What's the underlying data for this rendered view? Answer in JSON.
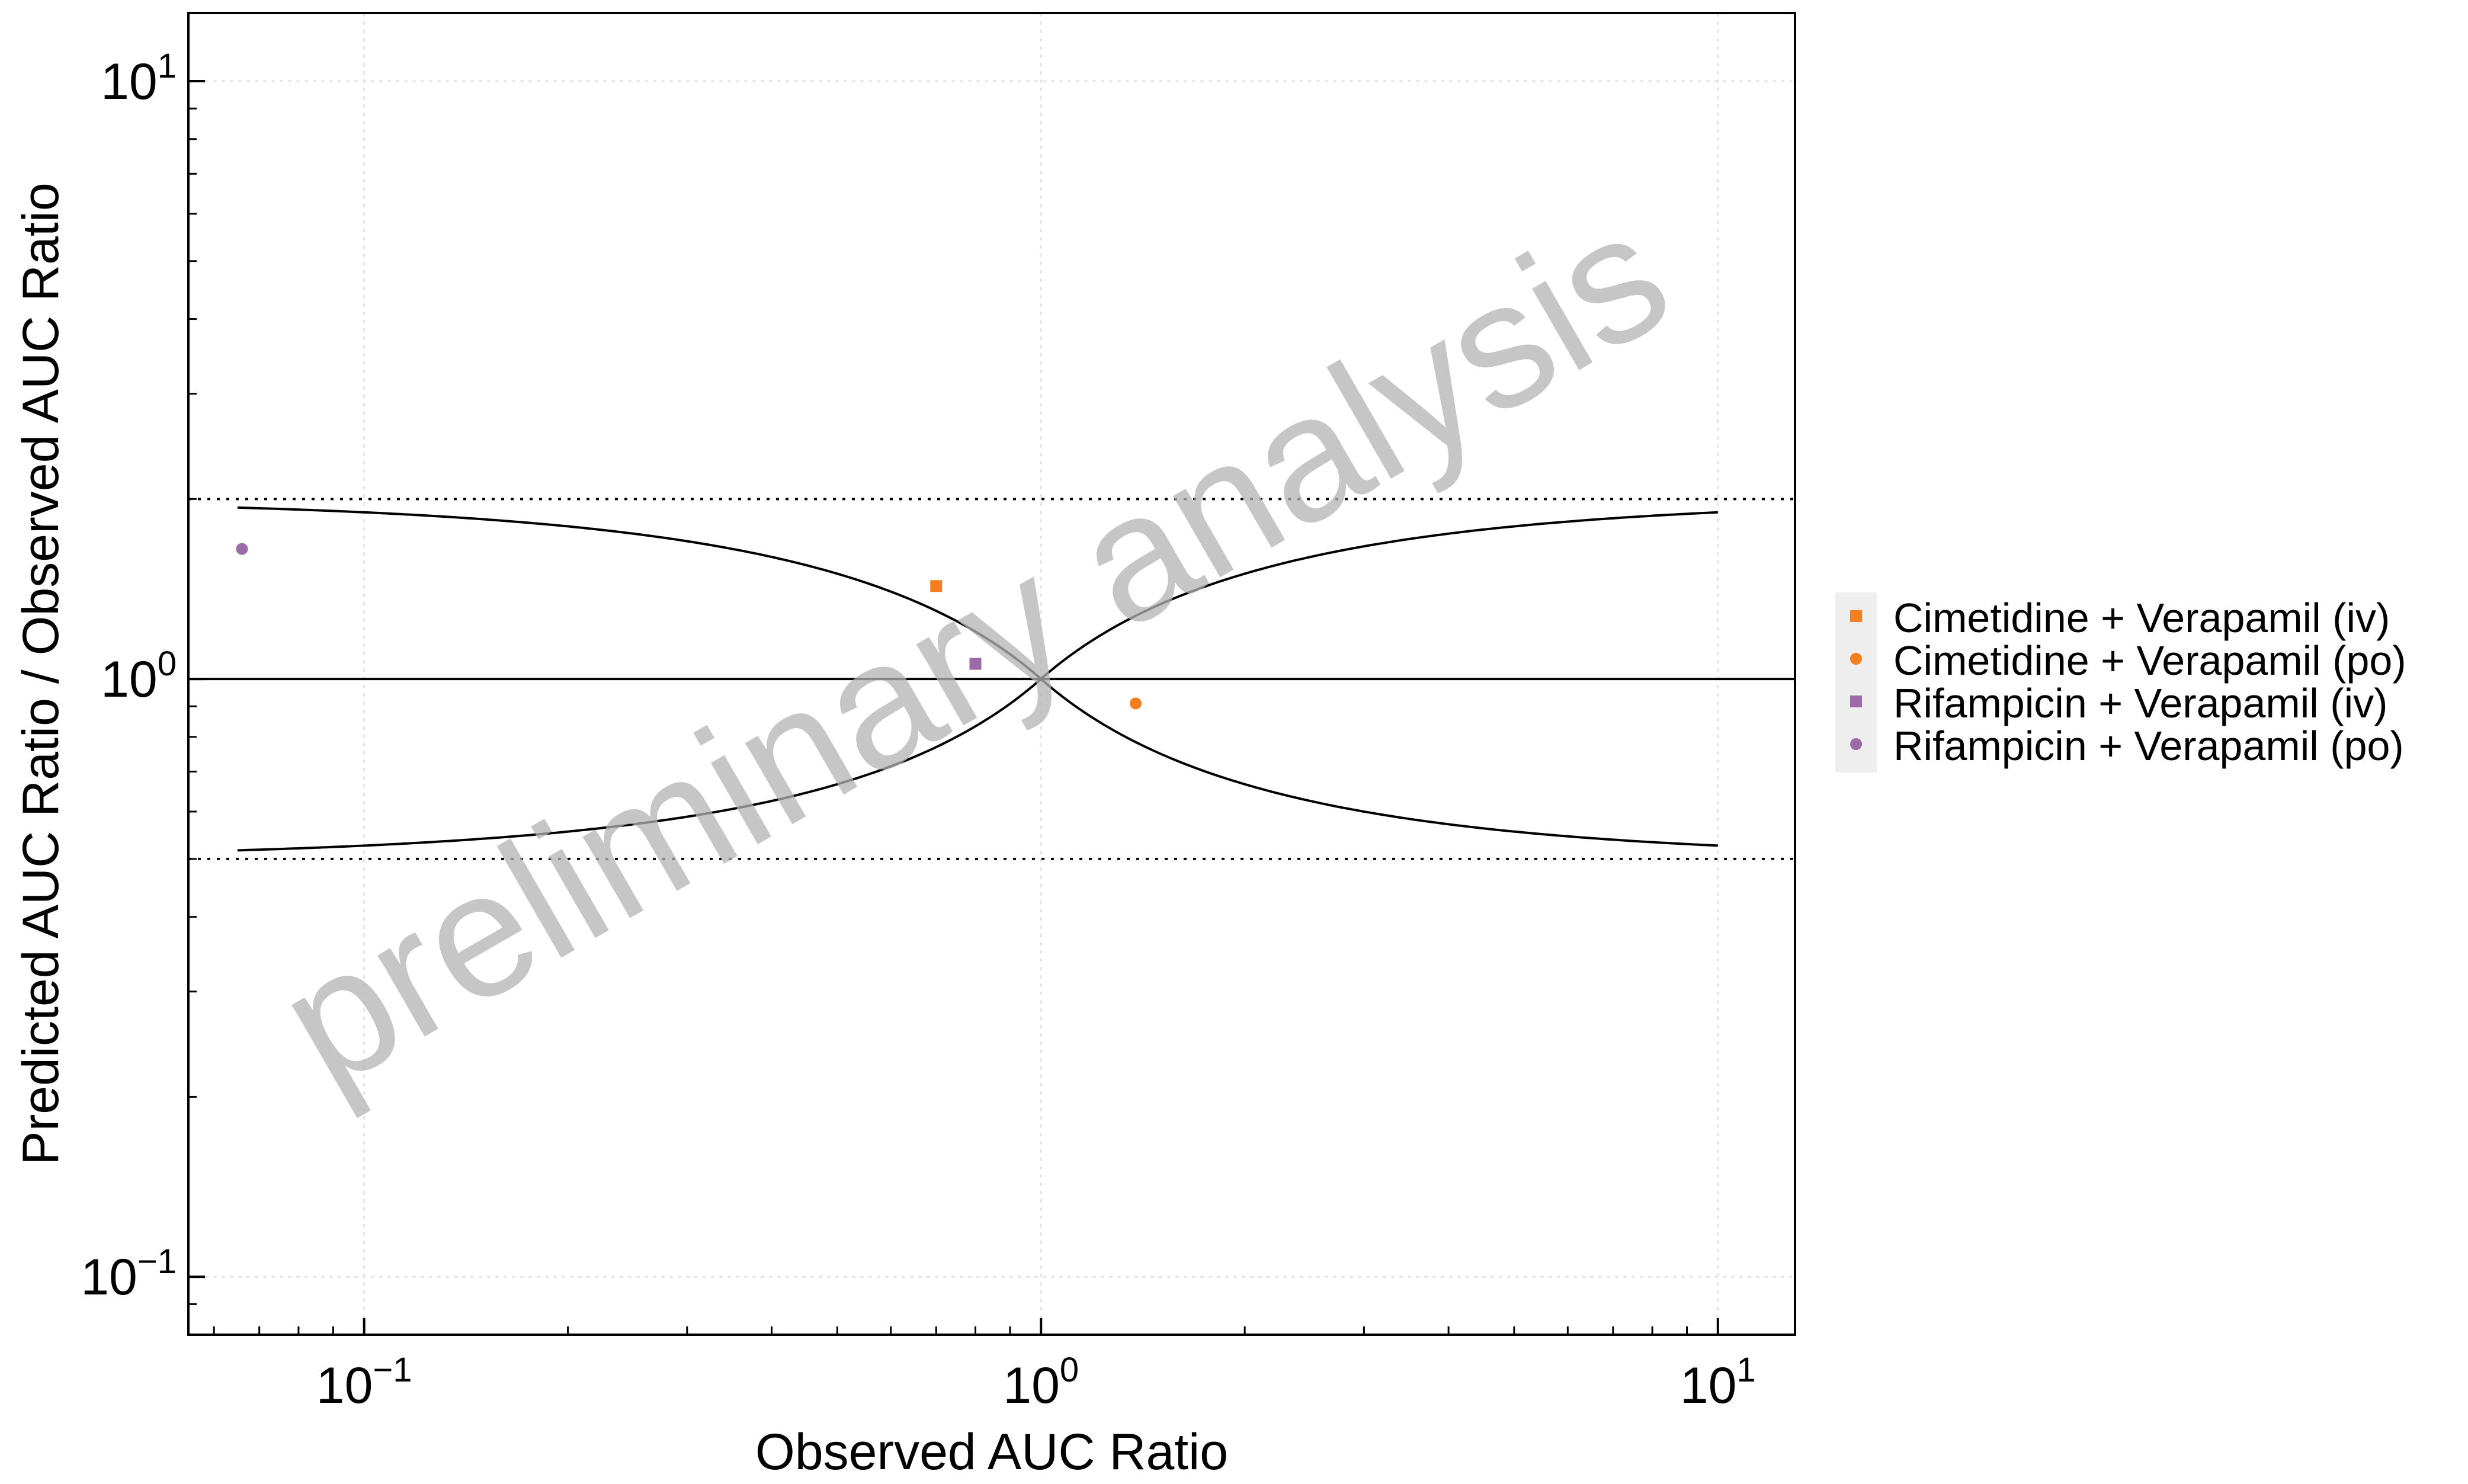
{
  "chart_data": {
    "type": "scatter",
    "xlabel": "Observed AUC Ratio",
    "ylabel": "Predicted AUC Ratio / Observed AUC Ratio",
    "xscale": "log",
    "yscale": "log",
    "xlim": [
      0.055,
      13
    ],
    "ylim": [
      0.08,
      13
    ],
    "x_ticks": [
      {
        "value": 0.1,
        "base": "10",
        "exp": "−1"
      },
      {
        "value": 1,
        "base": "10",
        "exp": "0"
      },
      {
        "value": 10,
        "base": "10",
        "exp": "1"
      }
    ],
    "y_ticks": [
      {
        "value": 0.1,
        "base": "10",
        "exp": "−1"
      },
      {
        "value": 1,
        "base": "10",
        "exp": "0"
      },
      {
        "value": 10,
        "base": "10",
        "exp": "1"
      }
    ],
    "grid": true,
    "legend_position": "right",
    "watermark": "preliminary analysis",
    "reference_lines": {
      "identity": 1,
      "twofold_upper": 2,
      "twofold_lower": 0.5,
      "guest_limits_x_range": [
        0.065,
        10
      ]
    },
    "series": [
      {
        "name": "Cimetidine + Verapamil (iv)",
        "marker": "square",
        "color": "#F57F20",
        "points": [
          {
            "x": 0.7,
            "y": 1.43
          }
        ]
      },
      {
        "name": "Cimetidine + Verapamil (po)",
        "marker": "circle",
        "color": "#F57F20",
        "points": [
          {
            "x": 1.38,
            "y": 0.91
          }
        ]
      },
      {
        "name": "Rifampicin + Verapamil (iv)",
        "marker": "square",
        "color": "#9C6AA6",
        "points": [
          {
            "x": 0.8,
            "y": 1.06
          }
        ]
      },
      {
        "name": "Rifampicin + Verapamil (po)",
        "marker": "circle",
        "color": "#9C6AA6",
        "points": [
          {
            "x": 0.066,
            "y": 1.65
          }
        ]
      }
    ]
  }
}
